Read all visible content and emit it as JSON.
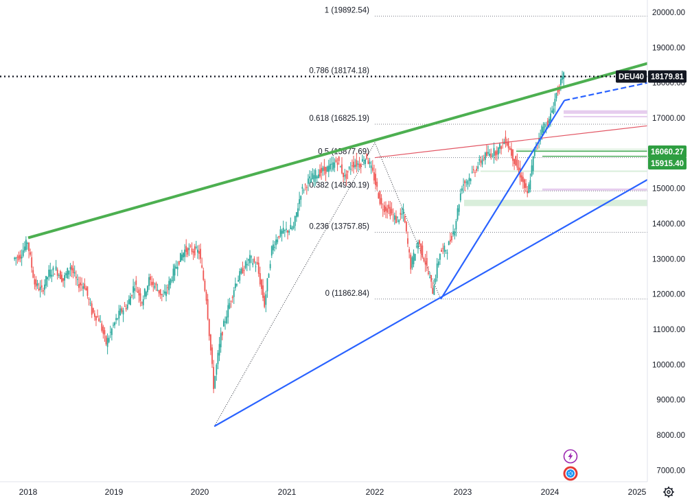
{
  "chart_data": {
    "type": "line",
    "symbol": "DEU40",
    "last_price": "18179.81",
    "price_tags": [
      "16060.27",
      "15915.40"
    ],
    "y_axis": {
      "ylim": [
        6800,
        20400
      ],
      "ticks": [
        "20000.00",
        "19000.00",
        "18000.00",
        "17000.00",
        "16000.00",
        "15000.00",
        "14000.00",
        "13000.00",
        "12000.00",
        "11000.00",
        "10000.00",
        "9000.00",
        "8000.00",
        "7000.00"
      ],
      "tick_values": [
        20000,
        19000,
        18000,
        17000,
        16000,
        15000,
        14000,
        13000,
        12000,
        11000,
        10000,
        9000,
        8000,
        7000
      ]
    },
    "x_axis": {
      "ticks": [
        "2018",
        "2019",
        "2020",
        "2021",
        "2022",
        "2023",
        "2024",
        "2025"
      ]
    },
    "price_path": {
      "x": [
        "2017-11",
        "2017-12",
        "2018-01",
        "2018-02",
        "2018-03",
        "2018-04",
        "2018-05",
        "2018-06",
        "2018-07",
        "2018-08",
        "2018-09",
        "2018-10",
        "2018-11",
        "2018-12",
        "2019-01",
        "2019-02",
        "2019-03",
        "2019-04",
        "2019-05",
        "2019-06",
        "2019-07",
        "2019-08",
        "2019-09",
        "2019-10",
        "2019-11",
        "2019-12",
        "2020-01",
        "2020-02",
        "2020-03",
        "2020-04",
        "2020-05",
        "2020-06",
        "2020-07",
        "2020-08",
        "2020-09",
        "2020-10",
        "2020-11",
        "2020-12",
        "2021-01",
        "2021-02",
        "2021-03",
        "2021-04",
        "2021-05",
        "2021-06",
        "2021-07",
        "2021-08",
        "2021-09",
        "2021-10",
        "2021-11",
        "2021-12",
        "2022-01",
        "2022-02",
        "2022-03",
        "2022-04",
        "2022-05",
        "2022-06",
        "2022-07",
        "2022-08",
        "2022-09",
        "2022-10",
        "2022-11",
        "2022-12",
        "2023-01",
        "2023-02",
        "2023-03",
        "2023-04",
        "2023-05",
        "2023-06",
        "2023-07",
        "2023-08",
        "2023-09",
        "2023-10",
        "2023-11",
        "2023-12",
        "2024-01",
        "2024-02",
        "2024-03"
      ],
      "y": [
        13000,
        13100,
        13500,
        12300,
        12100,
        12600,
        12700,
        12400,
        12800,
        12300,
        12250,
        11500,
        11300,
        10600,
        11100,
        11500,
        11700,
        12300,
        11800,
        12400,
        12200,
        11900,
        12400,
        12900,
        13250,
        13250,
        13200,
        11900,
        9400,
        10800,
        11600,
        12300,
        12700,
        13000,
        12800,
        11700,
        13300,
        13700,
        13800,
        13900,
        14900,
        15200,
        15400,
        15500,
        15600,
        15800,
        15300,
        15700,
        15700,
        15900,
        15300,
        14500,
        14400,
        14100,
        14300,
        12800,
        13500,
        12900,
        12100,
        13200,
        13300,
        13900,
        15100,
        15300,
        15600,
        15900,
        16000,
        16100,
        16400,
        15900,
        15400,
        14800,
        16100,
        16700,
        16900,
        17700,
        18180
      ]
    },
    "fibonacci": [
      {
        "level": "1",
        "value": "19892.54",
        "label": "1 (19892.54)"
      },
      {
        "level": "0.786",
        "value": "18174.18",
        "label": "0.786 (18174.18)"
      },
      {
        "level": "0.618",
        "value": "16825.19",
        "label": "0.618 (16825.19)"
      },
      {
        "level": "0.5",
        "value": "15877.69",
        "label": "0.5 (15877.69)"
      },
      {
        "level": "0.382",
        "value": "14930.19",
        "label": "0.382 (14930.19)"
      },
      {
        "level": "0.236",
        "value": "13757.85",
        "label": "0.236 (13757.85)"
      },
      {
        "level": "0",
        "value": "11862.84",
        "label": "0 (11862.84)"
      }
    ],
    "trendlines": [
      {
        "color": "#4caf50",
        "from": [
          "2018-01",
          13600
        ],
        "to": [
          "2025-01",
          18550
        ]
      },
      {
        "color": "#e25563",
        "from": [
          "2022-01",
          15877
        ],
        "to": [
          "2025-01",
          16780
        ]
      },
      {
        "color": "#2962ff",
        "from": [
          "2020-03",
          8250
        ],
        "to": [
          "2025-01",
          15250
        ]
      },
      {
        "color": "#2962ff",
        "from": [
          "2022-10",
          11860
        ],
        "to": [
          "2024-03",
          17500
        ]
      }
    ],
    "grid": false,
    "colors": {
      "up": "#26a69a",
      "down": "#ef5350",
      "green_line": "#4caf50",
      "blue_line": "#2962ff",
      "red_line": "#e25563",
      "tag_green": "#2e9e41",
      "tag_black": "#131722"
    }
  },
  "icons": {
    "alert": "lightning-icon",
    "events": "events-icon",
    "settings": "gear-icon"
  }
}
